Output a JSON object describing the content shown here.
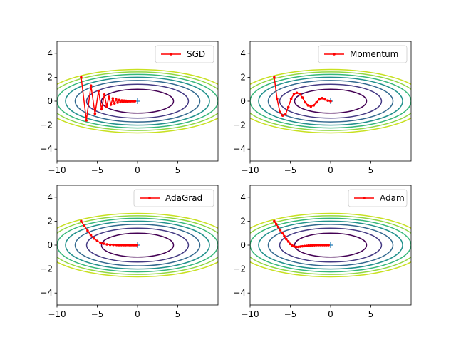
{
  "chart_data": [
    {
      "type": "line",
      "legend": {
        "placement": "top-right",
        "label": "SGD"
      },
      "xlim": [
        -10,
        10
      ],
      "ylim": [
        -5,
        5
      ],
      "xticks": [
        -10,
        -5,
        0,
        5
      ],
      "yticks": [
        -4,
        -2,
        0,
        2,
        4
      ],
      "grid": false,
      "contour_levels": [
        1,
        2,
        3,
        4,
        5,
        6,
        7
      ],
      "contour_colors": [
        "#440154",
        "#443983",
        "#31688e",
        "#21918c",
        "#35b779",
        "#90d743",
        "#c8e020"
      ],
      "minimum_marker": {
        "x": 0,
        "y": 0,
        "color": "#1f77b4"
      },
      "series": [
        {
          "color": "#ff0000",
          "x": [
            -7.0,
            -6.35,
            -5.78,
            -5.28,
            -4.84,
            -4.46,
            -4.12,
            -3.82,
            -3.55,
            -3.3,
            -3.07,
            -2.86,
            -2.66,
            -2.47,
            -2.29,
            -2.12,
            -1.96,
            -1.81,
            -1.67,
            -1.54,
            -1.41,
            -1.29,
            -1.18,
            -1.07,
            -0.97,
            -0.87,
            -0.78,
            -0.69,
            -0.61,
            -0.53,
            -0.45,
            -0.38,
            -0.31
          ],
          "y": [
            2.0,
            -1.6,
            1.3,
            -1.05,
            0.85,
            -0.68,
            0.55,
            -0.44,
            0.36,
            -0.29,
            0.23,
            -0.19,
            0.15,
            -0.12,
            0.1,
            -0.08,
            0.06,
            -0.05,
            0.04,
            -0.03,
            0.03,
            -0.02,
            0.02,
            -0.01,
            0.01,
            -0.01,
            0.01,
            0.0,
            0.0,
            0.0,
            0.0,
            0.0,
            0.0
          ]
        }
      ]
    },
    {
      "type": "line",
      "legend": {
        "placement": "top-right",
        "label": "Momentum"
      },
      "xlim": [
        -10,
        10
      ],
      "ylim": [
        -5,
        5
      ],
      "xticks": [
        -10,
        -5,
        0,
        5
      ],
      "yticks": [
        -4,
        -2,
        0,
        2,
        4
      ],
      "grid": false,
      "contour_levels": [
        1,
        2,
        3,
        4,
        5,
        6,
        7
      ],
      "contour_colors": [
        "#440154",
        "#443983",
        "#31688e",
        "#21918c",
        "#35b779",
        "#90d743",
        "#c8e020"
      ],
      "minimum_marker": {
        "x": 0,
        "y": 0,
        "color": "#1f77b4"
      },
      "series": [
        {
          "color": "#ff0000",
          "x": [
            -7.0,
            -6.65,
            -6.3,
            -5.95,
            -5.6,
            -5.25,
            -4.9,
            -4.55,
            -4.2,
            -3.85,
            -3.5,
            -3.15,
            -2.8,
            -2.45,
            -2.1,
            -1.75,
            -1.4,
            -1.05,
            -0.7,
            -0.35,
            0.0
          ],
          "y": [
            2.0,
            0.2,
            -0.9,
            -1.2,
            -1.1,
            -0.5,
            0.2,
            0.6,
            0.7,
            0.6,
            0.3,
            -0.1,
            -0.35,
            -0.45,
            -0.35,
            -0.1,
            0.15,
            0.25,
            0.15,
            0.05,
            0.0
          ]
        }
      ]
    },
    {
      "type": "line",
      "legend": {
        "placement": "top-right",
        "label": "AdaGrad"
      },
      "xlim": [
        -10,
        10
      ],
      "ylim": [
        -5,
        5
      ],
      "xticks": [
        -10,
        -5,
        0,
        5
      ],
      "yticks": [
        -4,
        -2,
        0,
        2,
        4
      ],
      "grid": false,
      "contour_levels": [
        1,
        2,
        3,
        4,
        5,
        6,
        7
      ],
      "contour_colors": [
        "#440154",
        "#443983",
        "#31688e",
        "#21918c",
        "#35b779",
        "#90d743",
        "#c8e020"
      ],
      "minimum_marker": {
        "x": 0,
        "y": 0,
        "color": "#1f77b4"
      },
      "series": [
        {
          "color": "#ff0000",
          "x": [
            -7.0,
            -6.6,
            -6.2,
            -5.8,
            -5.4,
            -5.0,
            -4.6,
            -4.2,
            -3.8,
            -3.4,
            -3.0,
            -2.6,
            -2.3,
            -2.0,
            -1.7,
            -1.45,
            -1.2,
            -1.0,
            -0.8,
            -0.6,
            -0.45,
            -0.3,
            -0.15
          ],
          "y": [
            2.0,
            1.6,
            1.2,
            0.85,
            0.55,
            0.35,
            0.2,
            0.12,
            0.06,
            0.03,
            0.02,
            0.01,
            0.0,
            0.0,
            0.0,
            0.0,
            0.0,
            0.0,
            0.0,
            0.0,
            0.0,
            0.0,
            0.0
          ]
        }
      ]
    },
    {
      "type": "line",
      "legend": {
        "placement": "top-right",
        "label": "Adam"
      },
      "xlim": [
        -10,
        10
      ],
      "ylim": [
        -5,
        5
      ],
      "xticks": [
        -10,
        -5,
        0,
        5
      ],
      "yticks": [
        -4,
        -2,
        0,
        2,
        4
      ],
      "grid": false,
      "contour_levels": [
        1,
        2,
        3,
        4,
        5,
        6,
        7
      ],
      "contour_colors": [
        "#440154",
        "#443983",
        "#31688e",
        "#21918c",
        "#35b779",
        "#90d743",
        "#c8e020"
      ],
      "minimum_marker": {
        "x": 0,
        "y": 0,
        "color": "#1f77b4"
      },
      "series": [
        {
          "color": "#ff0000",
          "x": [
            -7.0,
            -6.75,
            -6.5,
            -6.25,
            -6.0,
            -5.75,
            -5.5,
            -5.25,
            -5.0,
            -4.75,
            -4.5,
            -4.25,
            -4.0,
            -3.75,
            -3.5,
            -3.25,
            -3.0,
            -2.75,
            -2.5,
            -2.25,
            -2.0,
            -1.75,
            -1.5,
            -1.25,
            -1.0,
            -0.75,
            -0.5,
            -0.25
          ],
          "y": [
            2.0,
            1.75,
            1.5,
            1.25,
            1.0,
            0.75,
            0.5,
            0.3,
            0.1,
            -0.05,
            -0.12,
            -0.15,
            -0.15,
            -0.12,
            -0.1,
            -0.08,
            -0.06,
            -0.04,
            -0.03,
            -0.02,
            -0.01,
            0.0,
            0.0,
            0.0,
            0.0,
            0.0,
            0.0,
            0.0
          ]
        }
      ]
    }
  ]
}
